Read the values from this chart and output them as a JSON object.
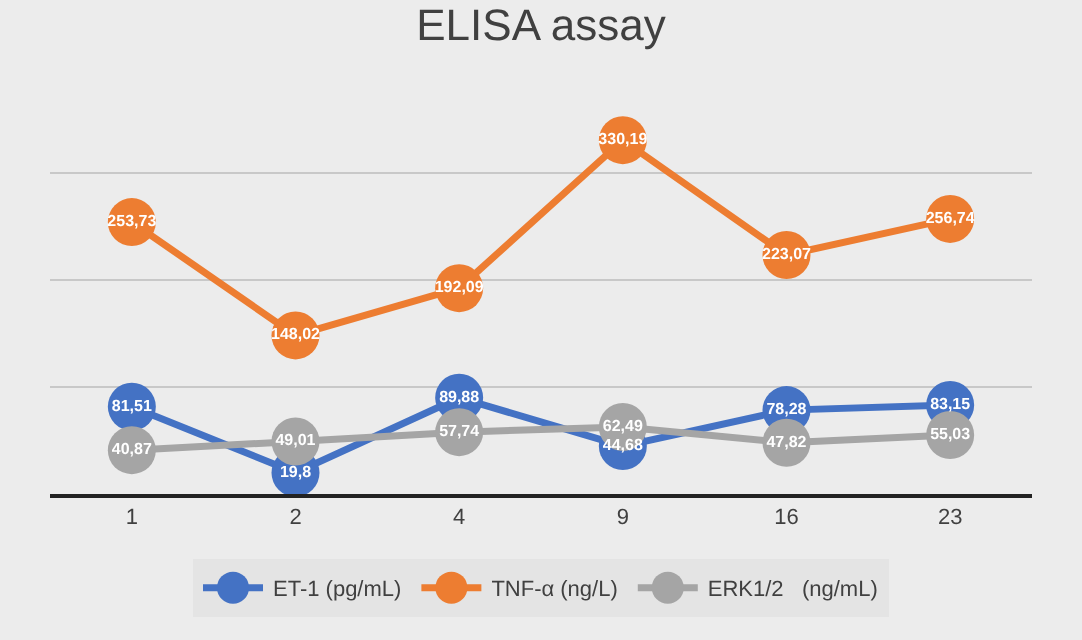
{
  "chart_data": {
    "type": "line",
    "title": "ELISA assay",
    "categories": [
      "1",
      "2",
      "4",
      "9",
      "16",
      "23"
    ],
    "series": [
      {
        "name": "ET-1 (pg/mL)",
        "color": "#4472c4",
        "values": [
          81.51,
          19.8,
          89.88,
          44.68,
          78.28,
          83.15
        ],
        "value_labels": [
          "81,51",
          "19,8",
          "89,88",
          "44,68",
          "78,28",
          "83,15"
        ]
      },
      {
        "name": "TNF-α (ng/L)",
        "color": "#ed7d31",
        "values": [
          253.73,
          148.02,
          192.09,
          330.19,
          223.07,
          256.74
        ],
        "value_labels": [
          "253,73",
          "148,02",
          "192,09",
          "330,19",
          "223,07",
          "256,74"
        ]
      },
      {
        "name": "ERK1/2   (ng/mL)",
        "color": "#a5a5a5",
        "values": [
          40.87,
          49.01,
          57.74,
          62.49,
          47.82,
          55.03
        ],
        "value_labels": [
          "40,87",
          "49,01",
          "57,74",
          "62,49",
          "47,82",
          "55,03"
        ]
      }
    ],
    "grid": "y",
    "legend": "bottom",
    "tick_labels": "x",
    "marker": "circle",
    "line_style": "solid"
  }
}
